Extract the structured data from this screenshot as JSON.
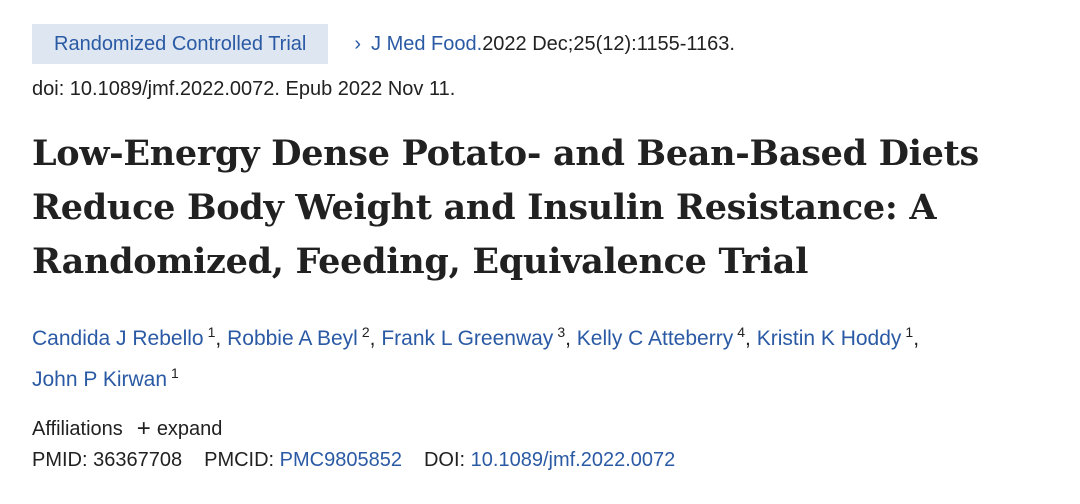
{
  "header": {
    "publication_type": "Randomized Controlled Trial",
    "journal": "J Med Food.",
    "citation_rest": " 2022 Dec;25(12):1155-1163.",
    "doi_epub": "doi: 10.1089/jmf.2022.0072. Epub 2022 Nov 11."
  },
  "title": "Low-Energy Dense Potato- and Bean-Based Diets Reduce Body Weight and Insulin Resistance: A Randomized, Feeding, Equivalence Trial",
  "authors": [
    {
      "name": "Candida J Rebello",
      "affil": "1"
    },
    {
      "name": "Robbie A Beyl",
      "affil": "2"
    },
    {
      "name": "Frank L Greenway",
      "affil": "3"
    },
    {
      "name": "Kelly C Atteberry",
      "affil": "4"
    },
    {
      "name": "Kristin K Hoddy",
      "affil": "1"
    },
    {
      "name": "John P Kirwan",
      "affil": "1"
    }
  ],
  "affiliations": {
    "label": "Affiliations",
    "expand_label": "expand"
  },
  "identifiers": {
    "pmid_label": "PMID:",
    "pmid": "36367708",
    "pmcid_label": "PMCID:",
    "pmcid": "PMC9805852",
    "doi_label": "DOI:",
    "doi": "10.1089/jmf.2022.0072"
  },
  "icons": {
    "chevron": "chevron-right-icon",
    "plus": "plus-icon"
  }
}
